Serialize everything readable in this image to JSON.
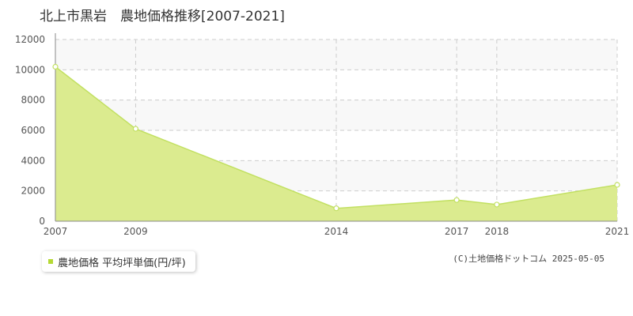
{
  "chart_data": {
    "type": "area",
    "title": "北上市黒岩　農地価格推移[2007-2021]",
    "x": [
      "2007",
      "2009",
      "2014",
      "2017",
      "2018",
      "2021"
    ],
    "series": [
      {
        "name": "農地価格 平均坪単価(円/坪)",
        "values": [
          10200,
          6100,
          850,
          1400,
          1100,
          2400
        ]
      }
    ],
    "ylim": [
      0,
      12000
    ],
    "yticks": [
      "0",
      "2000",
      "4000",
      "6000",
      "8000",
      "10000",
      "12000"
    ],
    "grid": true,
    "legend_position": "bottom-left",
    "colors": {
      "fill": "#dbeb8f",
      "line": "#c2e062",
      "marker": "#b5d934",
      "grid": "#cccccc"
    }
  },
  "legend": {
    "label": "農地価格 平均坪単価(円/坪)"
  },
  "copyright": "(C)土地価格ドットコム 2025-05-05"
}
